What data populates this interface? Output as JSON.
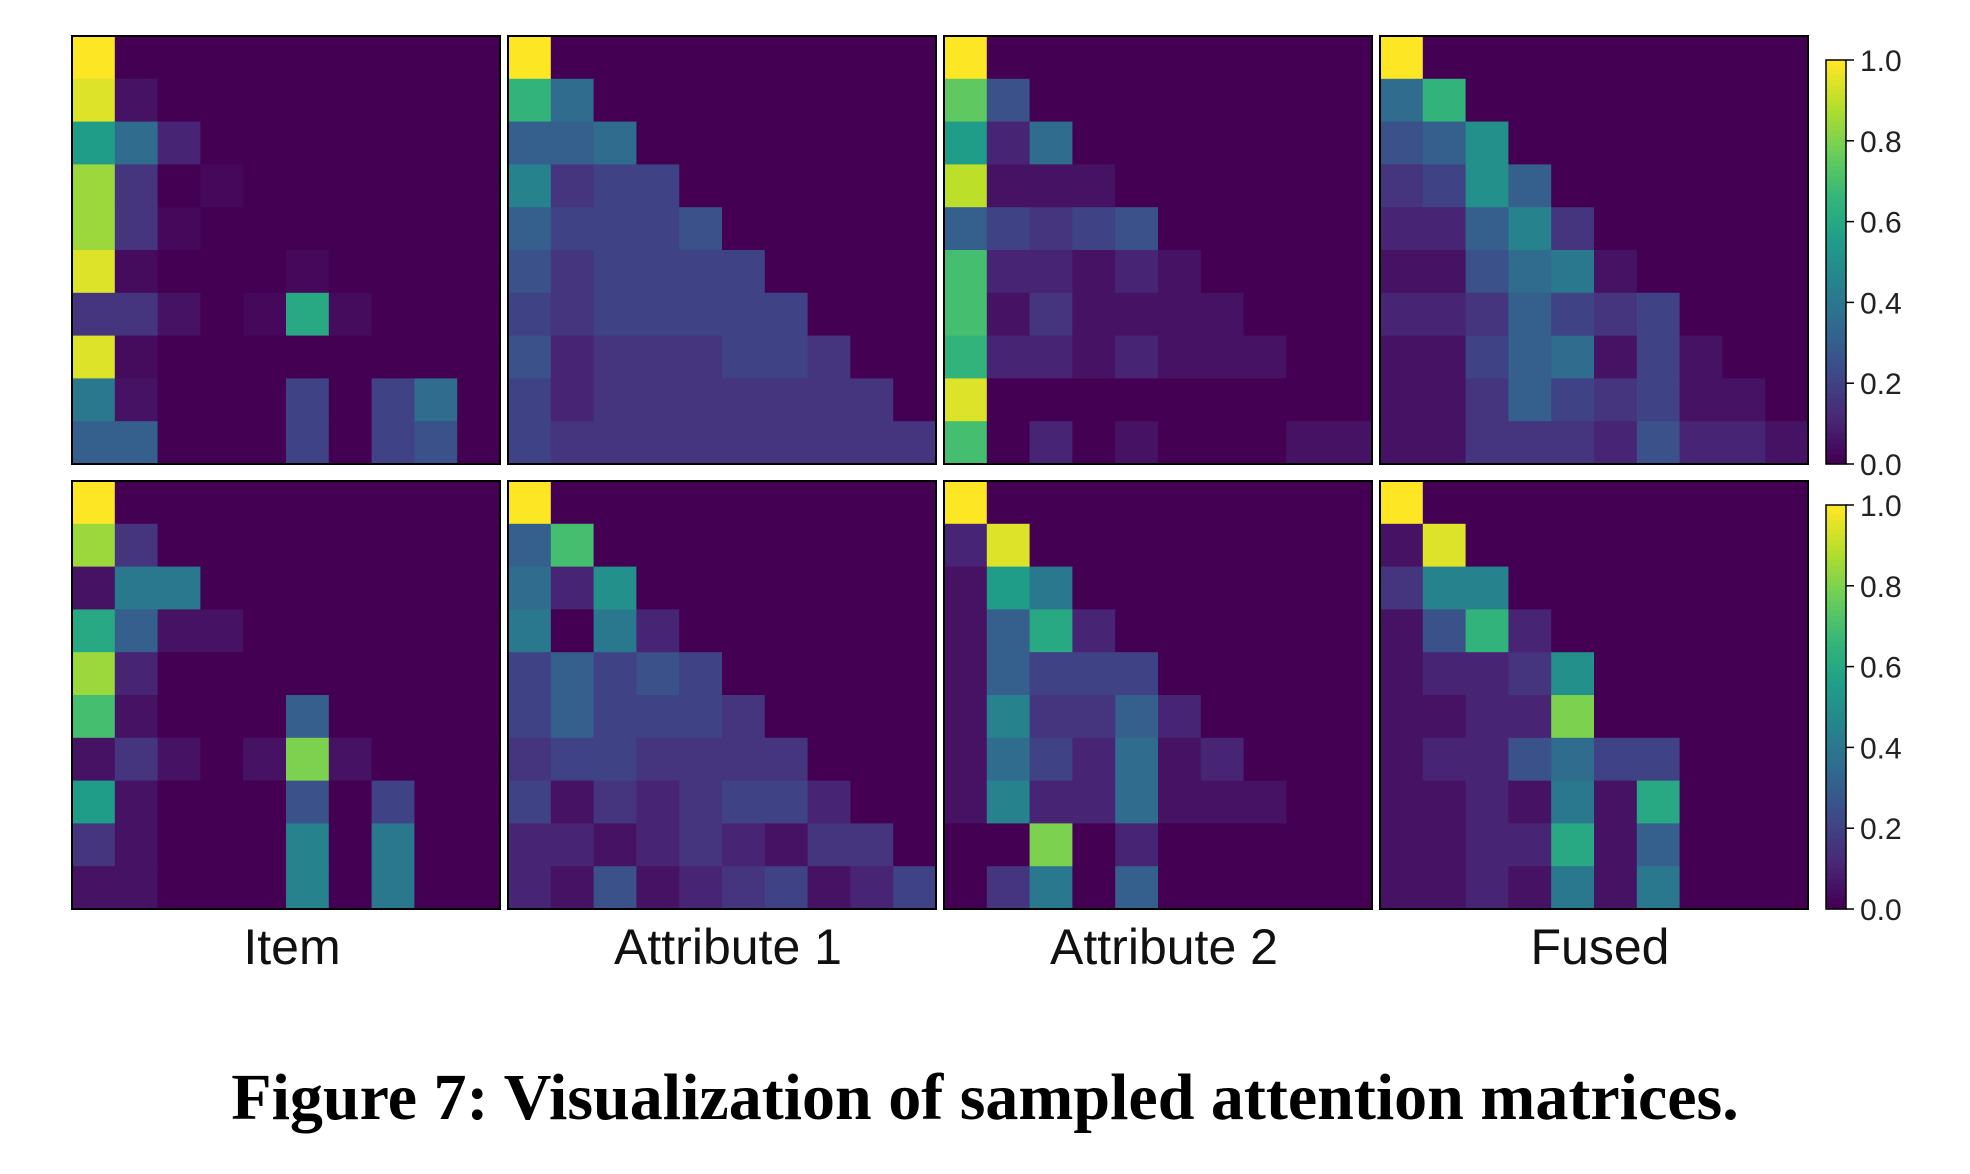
{
  "figure": {
    "caption": "Figure 7: Visualization of sampled attention matrices."
  },
  "colormap": {
    "name": "viridis",
    "stops": [
      "#440154",
      "#482878",
      "#3e4989",
      "#31688e",
      "#26828e",
      "#1f9e89",
      "#35b779",
      "#6ece58",
      "#b5de2b",
      "#fde725"
    ]
  },
  "chart_data": {
    "type": "heatmap",
    "columns": [
      "Item",
      "Attribute 1",
      "Attribute 2",
      "Fused"
    ],
    "colorbar": {
      "ticks": [
        "1.0",
        "0.8",
        "0.6",
        "0.4",
        "0.2",
        "0.0"
      ],
      "range": [
        0,
        1
      ]
    },
    "rows": [
      [
        {
          "name": "Item",
          "matrix": [
            [
              1.0,
              0,
              0,
              0,
              0,
              0,
              0,
              0,
              0,
              0
            ],
            [
              0.95,
              0.05,
              0,
              0,
              0,
              0,
              0,
              0,
              0,
              0
            ],
            [
              0.55,
              0.35,
              0.1,
              0,
              0,
              0,
              0,
              0,
              0,
              0
            ],
            [
              0.85,
              0.15,
              0,
              0.02,
              0,
              0,
              0,
              0,
              0,
              0
            ],
            [
              0.85,
              0.15,
              0.02,
              0,
              0,
              0,
              0,
              0,
              0,
              0
            ],
            [
              0.95,
              0.03,
              0,
              0,
              0,
              0.02,
              0,
              0,
              0,
              0
            ],
            [
              0.15,
              0.15,
              0.05,
              0,
              0.02,
              0.6,
              0.03,
              0,
              0,
              0
            ],
            [
              0.95,
              0.03,
              0,
              0,
              0,
              0,
              0,
              0,
              0,
              0
            ],
            [
              0.4,
              0.05,
              0,
              0,
              0,
              0.2,
              0,
              0.2,
              0.35,
              0
            ],
            [
              0.3,
              0.3,
              0,
              0,
              0,
              0.2,
              0,
              0.2,
              0.25,
              0
            ]
          ]
        },
        {
          "name": "Attribute 1",
          "matrix": [
            [
              1.0,
              0,
              0,
              0,
              0,
              0,
              0,
              0,
              0,
              0
            ],
            [
              0.65,
              0.35,
              0,
              0,
              0,
              0,
              0,
              0,
              0,
              0
            ],
            [
              0.3,
              0.3,
              0.35,
              0,
              0,
              0,
              0,
              0,
              0,
              0
            ],
            [
              0.45,
              0.15,
              0.2,
              0.2,
              0,
              0,
              0,
              0,
              0,
              0
            ],
            [
              0.3,
              0.2,
              0.2,
              0.2,
              0.25,
              0,
              0,
              0,
              0,
              0
            ],
            [
              0.25,
              0.15,
              0.2,
              0.2,
              0.2,
              0.2,
              0,
              0,
              0,
              0
            ],
            [
              0.2,
              0.15,
              0.2,
              0.2,
              0.2,
              0.2,
              0.2,
              0,
              0,
              0
            ],
            [
              0.25,
              0.1,
              0.15,
              0.15,
              0.15,
              0.2,
              0.2,
              0.15,
              0,
              0
            ],
            [
              0.2,
              0.1,
              0.15,
              0.15,
              0.15,
              0.15,
              0.15,
              0.15,
              0.15,
              0
            ],
            [
              0.2,
              0.15,
              0.15,
              0.15,
              0.15,
              0.15,
              0.15,
              0.15,
              0.15,
              0.15
            ]
          ]
        },
        {
          "name": "Attribute 2",
          "matrix": [
            [
              1.0,
              0,
              0,
              0,
              0,
              0,
              0,
              0,
              0,
              0
            ],
            [
              0.75,
              0.25,
              0,
              0,
              0,
              0,
              0,
              0,
              0,
              0
            ],
            [
              0.55,
              0.1,
              0.35,
              0,
              0,
              0,
              0,
              0,
              0,
              0
            ],
            [
              0.9,
              0.05,
              0.05,
              0.05,
              0,
              0,
              0,
              0,
              0,
              0
            ],
            [
              0.3,
              0.2,
              0.15,
              0.2,
              0.25,
              0,
              0,
              0,
              0,
              0
            ],
            [
              0.7,
              0.1,
              0.1,
              0.05,
              0.1,
              0.05,
              0,
              0,
              0,
              0
            ],
            [
              0.7,
              0.05,
              0.15,
              0.05,
              0.05,
              0.05,
              0.05,
              0,
              0,
              0
            ],
            [
              0.65,
              0.1,
              0.1,
              0.05,
              0.1,
              0.05,
              0.05,
              0.05,
              0,
              0
            ],
            [
              0.95,
              0,
              0,
              0,
              0,
              0,
              0,
              0,
              0,
              0
            ],
            [
              0.7,
              0,
              0.1,
              0,
              0.05,
              0,
              0,
              0,
              0.05,
              0.05
            ]
          ]
        },
        {
          "name": "Fused",
          "matrix": [
            [
              1.0,
              0,
              0,
              0,
              0,
              0,
              0,
              0,
              0,
              0
            ],
            [
              0.35,
              0.65,
              0,
              0,
              0,
              0,
              0,
              0,
              0,
              0
            ],
            [
              0.25,
              0.3,
              0.5,
              0,
              0,
              0,
              0,
              0,
              0,
              0
            ],
            [
              0.15,
              0.2,
              0.5,
              0.3,
              0,
              0,
              0,
              0,
              0,
              0
            ],
            [
              0.1,
              0.1,
              0.3,
              0.45,
              0.15,
              0,
              0,
              0,
              0,
              0
            ],
            [
              0.05,
              0.05,
              0.25,
              0.35,
              0.4,
              0.05,
              0,
              0,
              0,
              0
            ],
            [
              0.1,
              0.1,
              0.15,
              0.3,
              0.2,
              0.15,
              0.2,
              0,
              0,
              0
            ],
            [
              0.05,
              0.05,
              0.2,
              0.3,
              0.35,
              0.05,
              0.2,
              0.05,
              0,
              0
            ],
            [
              0.05,
              0.05,
              0.15,
              0.3,
              0.2,
              0.15,
              0.2,
              0.05,
              0.05,
              0
            ],
            [
              0.05,
              0.05,
              0.15,
              0.15,
              0.15,
              0.1,
              0.25,
              0.1,
              0.1,
              0.05
            ]
          ]
        }
      ],
      [
        {
          "name": "Item",
          "matrix": [
            [
              1.0,
              0,
              0,
              0,
              0,
              0,
              0,
              0,
              0,
              0
            ],
            [
              0.85,
              0.15,
              0,
              0,
              0,
              0,
              0,
              0,
              0,
              0
            ],
            [
              0.05,
              0.4,
              0.4,
              0,
              0,
              0,
              0,
              0,
              0,
              0
            ],
            [
              0.6,
              0.3,
              0.05,
              0.05,
              0,
              0,
              0,
              0,
              0,
              0
            ],
            [
              0.85,
              0.1,
              0,
              0,
              0,
              0,
              0,
              0,
              0,
              0
            ],
            [
              0.7,
              0.05,
              0,
              0,
              0,
              0.3,
              0,
              0,
              0,
              0
            ],
            [
              0.05,
              0.15,
              0.05,
              0,
              0.05,
              0.8,
              0.05,
              0,
              0,
              0
            ],
            [
              0.55,
              0.05,
              0,
              0,
              0,
              0.25,
              0,
              0.2,
              0,
              0
            ],
            [
              0.15,
              0.05,
              0,
              0,
              0,
              0.45,
              0,
              0.4,
              0,
              0
            ],
            [
              0.05,
              0.05,
              0,
              0,
              0,
              0.45,
              0,
              0.4,
              0,
              0
            ]
          ]
        },
        {
          "name": "Attribute 1",
          "matrix": [
            [
              1.0,
              0,
              0,
              0,
              0,
              0,
              0,
              0,
              0,
              0
            ],
            [
              0.3,
              0.7,
              0,
              0,
              0,
              0,
              0,
              0,
              0,
              0
            ],
            [
              0.35,
              0.1,
              0.5,
              0,
              0,
              0,
              0,
              0,
              0,
              0
            ],
            [
              0.4,
              0,
              0.4,
              0.1,
              0,
              0,
              0,
              0,
              0,
              0
            ],
            [
              0.2,
              0.3,
              0.2,
              0.25,
              0.2,
              0,
              0,
              0,
              0,
              0
            ],
            [
              0.2,
              0.3,
              0.2,
              0.2,
              0.2,
              0.15,
              0,
              0,
              0,
              0
            ],
            [
              0.15,
              0.2,
              0.2,
              0.15,
              0.15,
              0.15,
              0.15,
              0,
              0,
              0
            ],
            [
              0.2,
              0.05,
              0.15,
              0.1,
              0.15,
              0.2,
              0.2,
              0.1,
              0,
              0
            ],
            [
              0.1,
              0.1,
              0.05,
              0.1,
              0.15,
              0.1,
              0.05,
              0.15,
              0.15,
              0
            ],
            [
              0.1,
              0.05,
              0.25,
              0.05,
              0.1,
              0.15,
              0.2,
              0.05,
              0.1,
              0.2
            ]
          ]
        },
        {
          "name": "Attribute 2",
          "matrix": [
            [
              1.0,
              0,
              0,
              0,
              0,
              0,
              0,
              0,
              0,
              0
            ],
            [
              0.1,
              0.95,
              0,
              0,
              0,
              0,
              0,
              0,
              0,
              0
            ],
            [
              0.05,
              0.55,
              0.4,
              0,
              0,
              0,
              0,
              0,
              0,
              0
            ],
            [
              0.05,
              0.3,
              0.6,
              0.1,
              0,
              0,
              0,
              0,
              0,
              0
            ],
            [
              0.05,
              0.3,
              0.2,
              0.2,
              0.2,
              0,
              0,
              0,
              0,
              0
            ],
            [
              0.05,
              0.45,
              0.15,
              0.15,
              0.3,
              0.1,
              0,
              0,
              0,
              0
            ],
            [
              0.05,
              0.35,
              0.2,
              0.1,
              0.35,
              0.05,
              0.1,
              0,
              0,
              0
            ],
            [
              0.05,
              0.45,
              0.1,
              0.1,
              0.35,
              0.05,
              0.05,
              0.05,
              0,
              0
            ],
            [
              0,
              0,
              0.8,
              0,
              0.1,
              0,
              0,
              0,
              0,
              0
            ],
            [
              0,
              0.15,
              0.4,
              0,
              0.3,
              0,
              0,
              0,
              0,
              0
            ]
          ]
        },
        {
          "name": "Fused",
          "matrix": [
            [
              1.0,
              0,
              0,
              0,
              0,
              0,
              0,
              0,
              0,
              0
            ],
            [
              0.05,
              0.95,
              0,
              0,
              0,
              0,
              0,
              0,
              0,
              0
            ],
            [
              0.15,
              0.45,
              0.45,
              0,
              0,
              0,
              0,
              0,
              0,
              0
            ],
            [
              0.05,
              0.25,
              0.65,
              0.1,
              0,
              0,
              0,
              0,
              0,
              0
            ],
            [
              0.05,
              0.1,
              0.1,
              0.15,
              0.5,
              0,
              0,
              0,
              0,
              0
            ],
            [
              0.05,
              0.05,
              0.1,
              0.1,
              0.8,
              0,
              0,
              0,
              0,
              0
            ],
            [
              0.05,
              0.1,
              0.1,
              0.25,
              0.35,
              0.2,
              0.2,
              0,
              0,
              0
            ],
            [
              0.05,
              0.05,
              0.1,
              0.05,
              0.4,
              0.05,
              0.6,
              0,
              0,
              0
            ],
            [
              0.05,
              0.05,
              0.1,
              0.1,
              0.6,
              0.05,
              0.3,
              0,
              0,
              0
            ],
            [
              0.05,
              0.05,
              0.1,
              0.05,
              0.4,
              0.05,
              0.4,
              0,
              0,
              0
            ]
          ]
        }
      ]
    ]
  }
}
